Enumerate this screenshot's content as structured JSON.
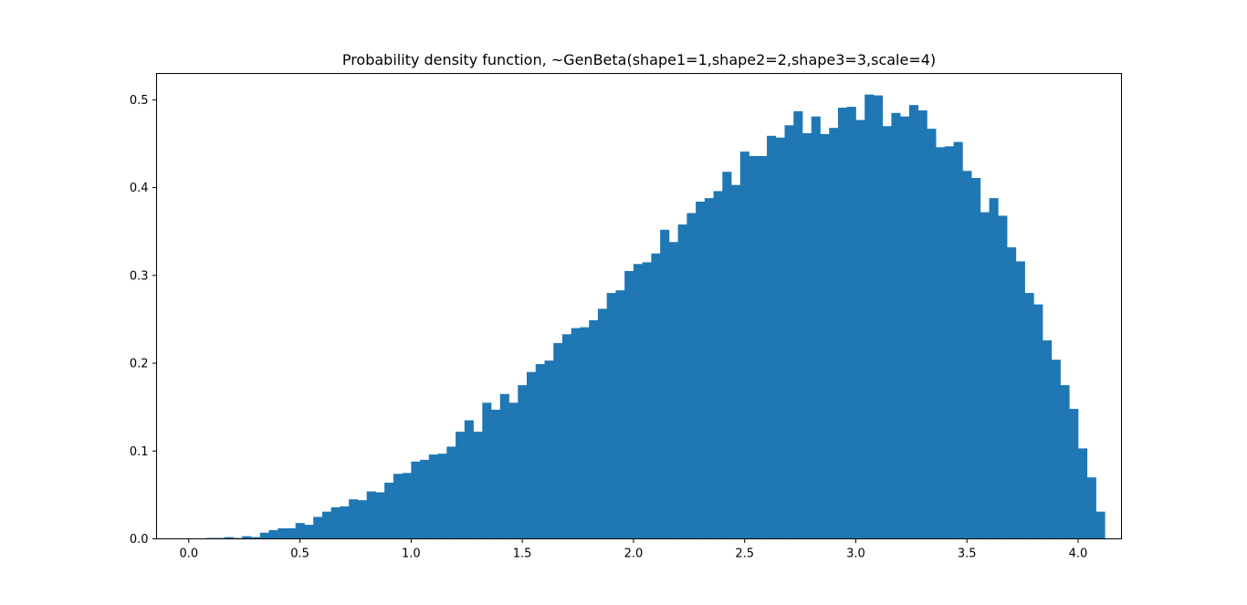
{
  "chart_data": {
    "type": "histogram",
    "title": "Probability density function, ~GenBeta(shape1=1,shape2=2,shape3=3,scale=4)",
    "xlabel": "",
    "ylabel": "",
    "xlim": [
      -0.145,
      4.195
    ],
    "ylim": [
      0,
      0.53
    ],
    "bin_width": 0.04,
    "x_start": 0.0,
    "x_ticks": [
      0.0,
      0.5,
      1.0,
      1.5,
      2.0,
      2.5,
      3.0,
      3.5,
      4.0
    ],
    "x_tick_labels": [
      "0.0",
      "0.5",
      "1.0",
      "1.5",
      "2.0",
      "2.5",
      "3.0",
      "3.5",
      "4.0"
    ],
    "y_ticks": [
      0.0,
      0.1,
      0.2,
      0.3,
      0.4,
      0.5
    ],
    "y_tick_labels": [
      "0.0",
      "0.1",
      "0.2",
      "0.3",
      "0.4",
      "0.5"
    ],
    "grid": false,
    "colors": {
      "bar": "#1f77b4",
      "axes": "#000000",
      "background": "#ffffff"
    },
    "values": [
      0.0,
      0.0,
      0.001,
      0.001,
      0.002,
      0.001,
      0.003,
      0.002,
      0.007,
      0.01,
      0.012,
      0.012,
      0.018,
      0.016,
      0.025,
      0.031,
      0.036,
      0.037,
      0.045,
      0.044,
      0.054,
      0.053,
      0.064,
      0.074,
      0.075,
      0.088,
      0.09,
      0.096,
      0.097,
      0.105,
      0.122,
      0.135,
      0.122,
      0.155,
      0.147,
      0.165,
      0.155,
      0.175,
      0.19,
      0.199,
      0.203,
      0.223,
      0.233,
      0.24,
      0.241,
      0.249,
      0.262,
      0.28,
      0.283,
      0.305,
      0.313,
      0.315,
      0.325,
      0.352,
      0.338,
      0.358,
      0.371,
      0.384,
      0.388,
      0.396,
      0.418,
      0.403,
      0.441,
      0.436,
      0.436,
      0.459,
      0.457,
      0.471,
      0.487,
      0.462,
      0.481,
      0.461,
      0.468,
      0.491,
      0.492,
      0.477,
      0.506,
      0.505,
      0.47,
      0.485,
      0.481,
      0.494,
      0.488,
      0.467,
      0.446,
      0.447,
      0.452,
      0.419,
      0.411,
      0.372,
      0.388,
      0.368,
      0.332,
      0.316,
      0.28,
      0.267,
      0.226,
      0.204,
      0.175,
      0.148,
      0.103,
      0.07,
      0.031
    ]
  }
}
